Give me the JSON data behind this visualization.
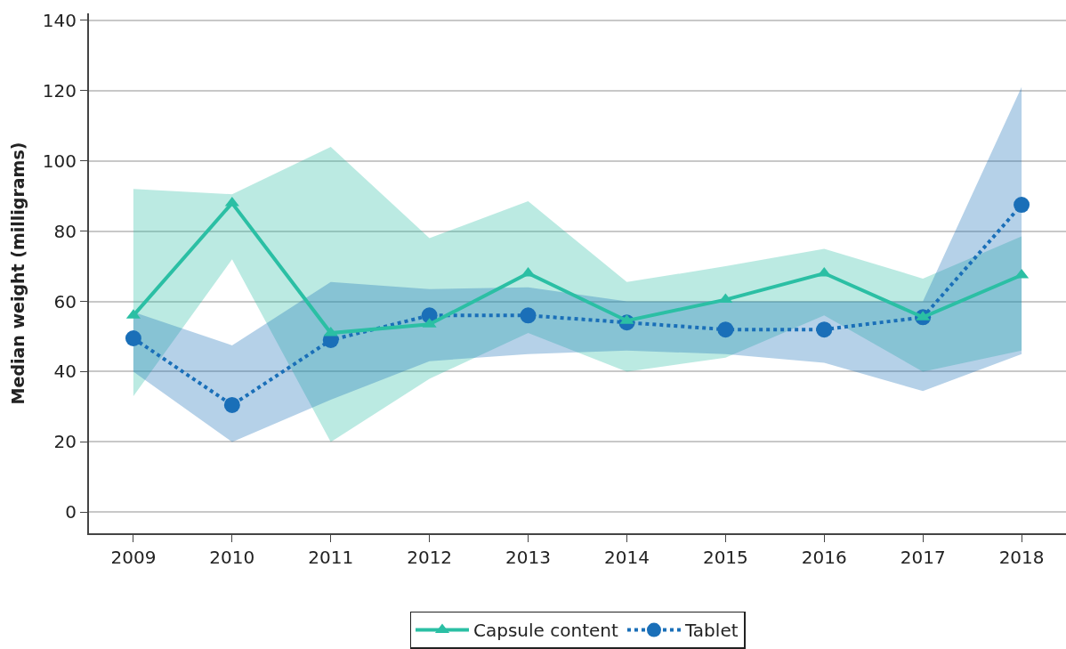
{
  "chart_data": {
    "type": "line",
    "ylabel": "Median weight (milligrams)",
    "categories": [
      "2009",
      "2010",
      "2011",
      "2012",
      "2013",
      "2014",
      "2015",
      "2016",
      "2017",
      "2018"
    ],
    "series": [
      {
        "name": "Capsule content",
        "color": "#2bbfa4",
        "marker": "triangle",
        "line_style": "solid",
        "values": [
          56,
          88,
          51,
          53.5,
          68,
          54.5,
          60.5,
          68,
          55.5,
          67.5
        ],
        "lower": [
          33,
          72,
          20,
          38,
          51,
          40,
          44,
          56,
          40,
          46
        ],
        "upper": [
          92,
          90.5,
          104,
          78,
          88.5,
          65.5,
          70,
          75,
          66.5,
          78.5
        ]
      },
      {
        "name": "Tablet",
        "color": "#1a6fb8",
        "marker": "circle",
        "line_style": "dotted",
        "values": [
          49.5,
          30.5,
          49,
          56,
          56,
          54,
          52,
          52,
          55.5,
          87.5
        ],
        "lower": [
          40,
          20,
          32,
          43,
          45,
          46,
          45,
          42.5,
          34.5,
          45
        ],
        "upper": [
          57,
          47.5,
          65.5,
          63.5,
          64,
          60,
          60,
          60,
          60,
          121
        ]
      }
    ],
    "ylim": [
      -6,
      142
    ],
    "yticks": [
      0,
      20,
      40,
      60,
      80,
      100,
      120,
      140
    ],
    "grid": "y",
    "legend": "bottom"
  }
}
